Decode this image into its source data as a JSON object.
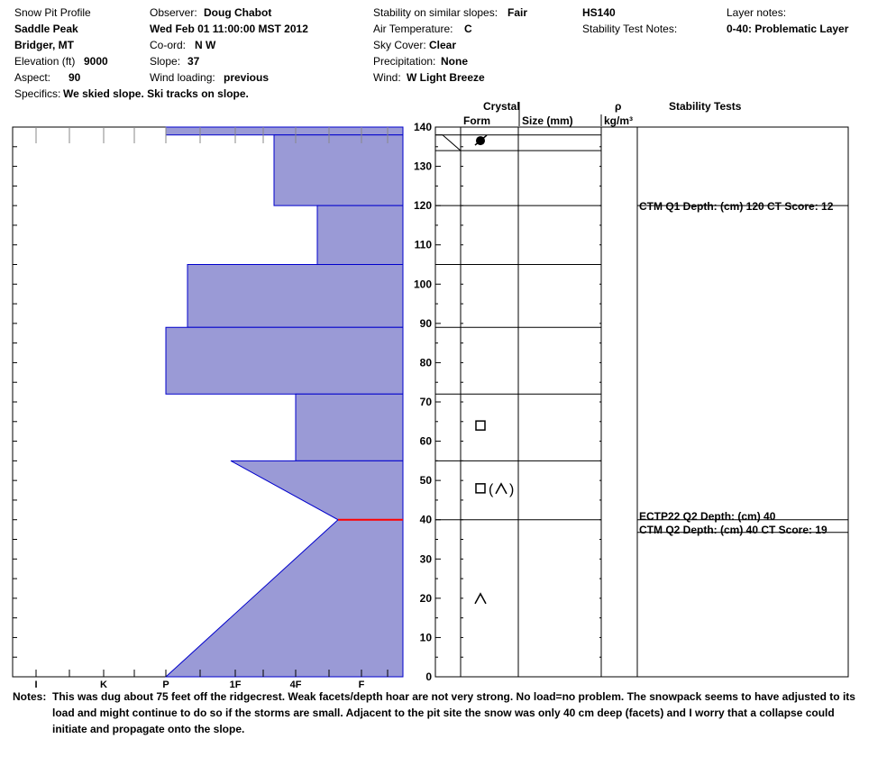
{
  "header": {
    "title": "Snow Pit Profile",
    "location": "Saddle Peak",
    "region": "Bridger, MT",
    "elevation_label": "Elevation (ft)",
    "elevation_value": "9000",
    "aspect_label": "Aspect:",
    "aspect_value": "90",
    "specifics_label": "Specifics:",
    "specifics_value": "We skied slope. Ski tracks on slope.",
    "observer_label": "Observer:",
    "observer_value": "Doug Chabot",
    "datetime": "Wed Feb 01 11:00:00 MST 2012",
    "coord_label": "Co-ord:",
    "coord_value": "N  W",
    "slope_label": "Slope:",
    "slope_value": "37",
    "wind_loading_label": "Wind loading:",
    "wind_loading_value": "previous",
    "stability_label": "Stability on similar slopes:",
    "stability_value": "Fair",
    "air_temp_label": "Air Temperature:",
    "air_temp_value": "C",
    "sky_label": "Sky Cover:",
    "sky_value": "Clear",
    "precip_label": "Precipitation:",
    "precip_value": "None",
    "wind_label": "Wind:",
    "wind_value": "W Light Breeze",
    "hs": "HS140",
    "stability_notes_label": "Stability Test Notes:",
    "layer_notes_label": "Layer notes:",
    "layer_notes_value": "0-40: Problematic Layer"
  },
  "table_headers": {
    "crystal": "Crystal",
    "form": "Form",
    "size": "Size (mm)",
    "rho": "ρ",
    "density_unit": "kg/m³",
    "stability_tests": "Stability Tests"
  },
  "chart_data": {
    "type": "area",
    "xlabel": "",
    "ylabel": "",
    "hardness_ticks": [
      "I",
      "K",
      "P",
      "1F",
      "4F",
      "F"
    ],
    "ylim": [
      0,
      140
    ],
    "depth_ticks": [
      "0",
      "10",
      "20",
      "30",
      "40",
      "50",
      "60",
      "70",
      "80",
      "90",
      "100",
      "110",
      "120",
      "130",
      "140"
    ],
    "hardness_profile": [
      {
        "top": 140,
        "bottom": 138,
        "hardness_top": "P",
        "hardness_bottom": "P"
      },
      {
        "top": 138,
        "bottom": 120,
        "hardness_top": "1F+",
        "hardness_bottom": "1F+"
      },
      {
        "top": 120,
        "bottom": 105,
        "hardness_top": "4F-",
        "hardness_bottom": "4F-"
      },
      {
        "top": 105,
        "bottom": 89,
        "hardness_top": "P+",
        "hardness_bottom": "P+"
      },
      {
        "top": 89,
        "bottom": 72,
        "hardness_top": "P",
        "hardness_bottom": "P"
      },
      {
        "top": 72,
        "bottom": 55,
        "hardness_top": "4F",
        "hardness_bottom": "4F"
      },
      {
        "top": 55,
        "bottom": 40,
        "hardness_top": "1F-",
        "hardness_bottom": "4F+"
      },
      {
        "top": 40,
        "bottom": 0,
        "hardness_top": "4F+",
        "hardness_bottom": "P"
      }
    ],
    "layer_boundaries": [
      138,
      134,
      120,
      105,
      89,
      72,
      55,
      40
    ],
    "weak_layer_depth": 40,
    "weak_layer_color": "#ff0000",
    "fill_color": "#9a9ad6",
    "edge_color": "#0000cc",
    "crystal_symbols": [
      {
        "depth": 137,
        "symbol": "precipitation-particle-icon"
      },
      {
        "depth": 64,
        "symbol": "faceted-crystal-icon"
      },
      {
        "depth": 48,
        "symbol": "facet-depth-hoar-icon"
      },
      {
        "depth": 20,
        "symbol": "depth-hoar-icon"
      }
    ]
  },
  "stability_tests": [
    {
      "depth": 120,
      "text": "CTM Q1 Depth: (cm) 120 CT Score: 12"
    },
    {
      "depth": 40,
      "text": "ECTP22 Q2 Depth: (cm) 40"
    },
    {
      "depth": 40,
      "text": "CTM Q2 Depth: (cm) 40 CT Score: 19"
    }
  ],
  "notes": {
    "label": "Notes:",
    "text": "This was dug about 75 feet off the ridgecrest.  Weak facets/depth hoar are not very strong.  No load=no problem.  The snowpack seems to have adjusted to its\nload and might continue to do so if the storms are small.  Adjacent to the pit site the snow was only 40 cm deep (facets) and I worry that a collapse could\ninitiate and propagate onto the slope."
  }
}
